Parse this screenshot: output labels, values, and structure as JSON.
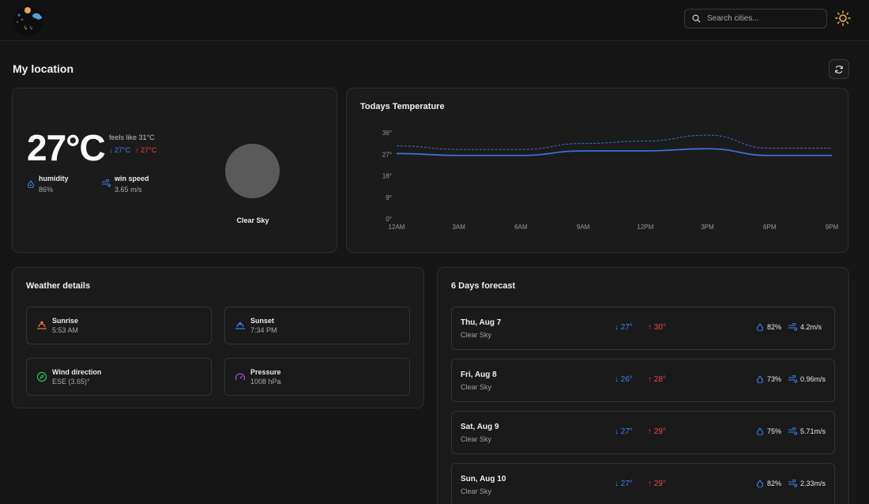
{
  "header": {
    "search_placeholder": "Search cities...",
    "logo_icon": "weather-logo-icon",
    "theme_icon": "sun-icon"
  },
  "page": {
    "title": "My location",
    "refresh_icon": "refresh-icon"
  },
  "current": {
    "temperature": "27°C",
    "feels_like": "feels like 31°C",
    "min": "27°C",
    "max": "27°C",
    "humidity_label": "humidity",
    "humidity_value": "86%",
    "wind_label": "win speed",
    "wind_value": "3.65 m/s",
    "condition": "Clear Sky"
  },
  "temperature_chart": {
    "title": "Todays Temperature"
  },
  "chart_data": {
    "type": "line",
    "title": "Todays Temperature",
    "categories": [
      "12AM",
      "3AM",
      "6AM",
      "9AM",
      "12PM",
      "3PM",
      "6PM",
      "9PM"
    ],
    "y_ticks": [
      "0°",
      "9°",
      "18°",
      "27°",
      "36°"
    ],
    "ylim": [
      0,
      36
    ],
    "series": [
      {
        "style": "solid",
        "values": [
          27.3,
          26.5,
          26.5,
          28.4,
          28.4,
          29.3,
          26.5,
          26.5
        ]
      },
      {
        "style": "dashed",
        "values": [
          30.5,
          29,
          29,
          31.5,
          32.5,
          35,
          29.5,
          29.5
        ]
      }
    ],
    "colors": {
      "line": "#3b6fd8",
      "grid": "#2a2a2a",
      "tick": "#9a9a9a"
    },
    "grid": false
  },
  "details": {
    "title": "Weather details",
    "items": [
      {
        "label": "Sunrise",
        "value": "5:53 AM",
        "icon": "sunrise-icon"
      },
      {
        "label": "Sunset",
        "value": "7:34 PM",
        "icon": "sunset-icon"
      },
      {
        "label": "Wind direction",
        "value": "ESE (3.65)°",
        "icon": "compass-icon"
      },
      {
        "label": "Pressure",
        "value": "1008 hPa",
        "icon": "gauge-icon"
      }
    ]
  },
  "forecast": {
    "title": "6 Days forecast",
    "days": [
      {
        "day": "Thu, Aug 7",
        "condition": "Clear Sky",
        "low": "27°",
        "high": "30°",
        "humidity": "82%",
        "wind": "4.2m/s"
      },
      {
        "day": "Fri, Aug 8",
        "condition": "Clear Sky",
        "low": "26°",
        "high": "28°",
        "humidity": "73%",
        "wind": "0.96m/s"
      },
      {
        "day": "Sat, Aug 9",
        "condition": "Clear Sky",
        "low": "27°",
        "high": "29°",
        "humidity": "75%",
        "wind": "5.71m/s"
      },
      {
        "day": "Sun, Aug 10",
        "condition": "Clear Sky",
        "low": "27°",
        "high": "29°",
        "humidity": "82%",
        "wind": "2.33m/s"
      }
    ]
  },
  "colors": {
    "accent_blue": "#3b82f6",
    "accent_red": "#ef4444",
    "background": "#161616",
    "card": "#1b1b1b"
  }
}
